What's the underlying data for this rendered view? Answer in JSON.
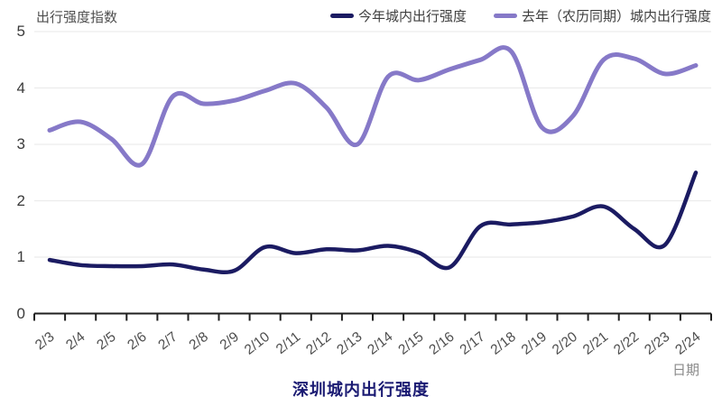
{
  "chart_data": {
    "type": "line",
    "title": "深圳城内出行强度",
    "xlabel": "日期",
    "ylabel": "出行强度指数",
    "ylim": [
      0,
      5
    ],
    "yticks": [
      0,
      1,
      2,
      3,
      4,
      5
    ],
    "grid": "horizontal",
    "legend_position": "top-right",
    "smooth": true,
    "categories": [
      "2/3",
      "2/4",
      "2/5",
      "2/6",
      "2/7",
      "2/8",
      "2/9",
      "2/10",
      "2/11",
      "2/12",
      "2/13",
      "2/14",
      "2/15",
      "2/16",
      "2/17",
      "2/18",
      "2/19",
      "2/20",
      "2/21",
      "2/22",
      "2/23",
      "2/24"
    ],
    "series": [
      {
        "name": "今年城内出行强度",
        "color": "#1b1b62",
        "values": [
          0.95,
          0.86,
          0.84,
          0.84,
          0.87,
          0.78,
          0.76,
          1.18,
          1.07,
          1.14,
          1.12,
          1.2,
          1.08,
          0.82,
          1.55,
          1.58,
          1.62,
          1.72,
          1.9,
          1.5,
          1.22,
          2.5
        ]
      },
      {
        "name": "去年（农历同期）城内出行强度",
        "color": "#8679c8",
        "values": [
          3.25,
          3.4,
          3.1,
          2.65,
          3.85,
          3.72,
          3.78,
          3.95,
          4.08,
          3.65,
          3.0,
          4.2,
          4.14,
          4.33,
          4.5,
          4.65,
          3.3,
          3.5,
          4.5,
          4.52,
          4.25,
          4.4
        ]
      }
    ]
  },
  "colors": {
    "grid_line": "#ececec",
    "axis_line": "#1f1f1f",
    "tick_label": "#4f4f4f",
    "title": "#1a1a72"
  }
}
